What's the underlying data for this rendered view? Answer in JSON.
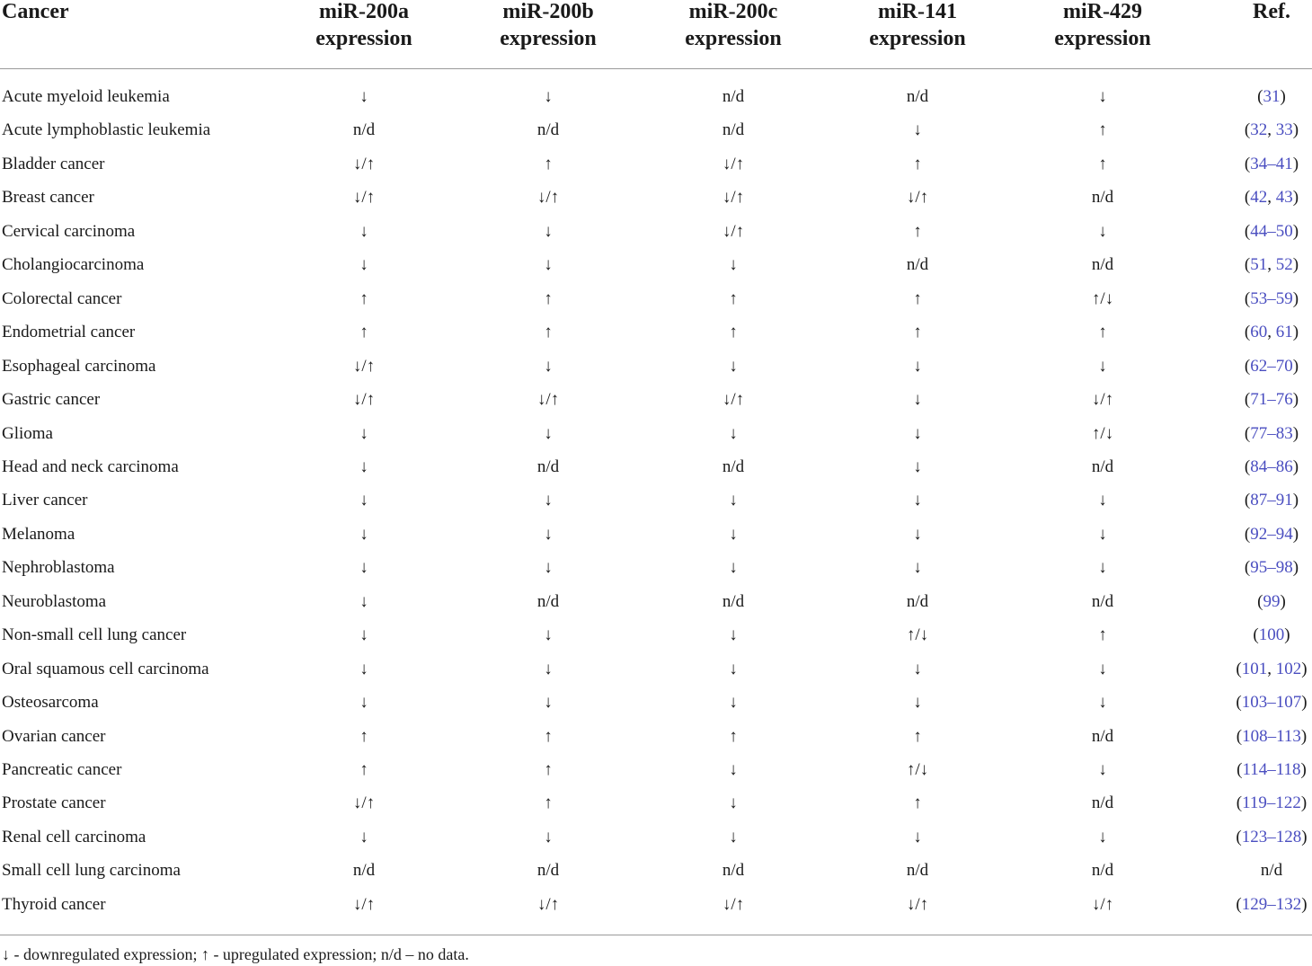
{
  "table": {
    "headers": [
      {
        "line1": "Cancer",
        "line2": ""
      },
      {
        "line1": "miR-200a",
        "line2": "expression"
      },
      {
        "line1": "miR-200b",
        "line2": "expression"
      },
      {
        "line1": "miR-200c",
        "line2": "expression"
      },
      {
        "line1": "miR-141",
        "line2": "expression"
      },
      {
        "line1": "miR-429",
        "line2": "expression"
      },
      {
        "line1": "Ref.",
        "line2": ""
      }
    ],
    "rows": [
      {
        "cancer": "Acute myeloid leukemia",
        "a": "↓",
        "b": "↓",
        "c": "n/d",
        "m141": "n/d",
        "m429": "↓",
        "ref": [
          "31"
        ]
      },
      {
        "cancer": "Acute lymphoblastic leukemia",
        "a": "n/d",
        "b": "n/d",
        "c": "n/d",
        "m141": "↓",
        "m429": "↑",
        "ref": [
          "32",
          ", ",
          "33"
        ]
      },
      {
        "cancer": "Bladder cancer",
        "a": "↓/↑",
        "b": "↑",
        "c": "↓/↑",
        "m141": "↑",
        "m429": "↑",
        "ref": [
          "34–41"
        ]
      },
      {
        "cancer": "Breast cancer",
        "a": "↓/↑",
        "b": "↓/↑",
        "c": "↓/↑",
        "m141": "↓/↑",
        "m429": "n/d",
        "ref": [
          "42",
          ", ",
          "43"
        ]
      },
      {
        "cancer": "Cervical carcinoma",
        "a": "↓",
        "b": "↓",
        "c": "↓/↑",
        "m141": "↑",
        "m429": "↓",
        "ref": [
          "44–50"
        ]
      },
      {
        "cancer": "Cholangiocarcinoma",
        "a": "↓",
        "b": "↓",
        "c": "↓",
        "m141": "n/d",
        "m429": "n/d",
        "ref": [
          "51",
          ", ",
          "52"
        ]
      },
      {
        "cancer": "Colorectal cancer",
        "a": "↑",
        "b": "↑",
        "c": "↑",
        "m141": "↑",
        "m429": "↑/↓",
        "ref": [
          "53–59"
        ]
      },
      {
        "cancer": "Endometrial cancer",
        "a": "↑",
        "b": "↑",
        "c": "↑",
        "m141": "↑",
        "m429": "↑",
        "ref": [
          "60",
          ", ",
          "61"
        ]
      },
      {
        "cancer": "Esophageal carcinoma",
        "a": "↓/↑",
        "b": "↓",
        "c": "↓",
        "m141": "↓",
        "m429": "↓",
        "ref": [
          "62–70"
        ]
      },
      {
        "cancer": "Gastric cancer",
        "a": "↓/↑",
        "b": "↓/↑",
        "c": "↓/↑",
        "m141": "↓",
        "m429": "↓/↑",
        "ref": [
          "71–76"
        ]
      },
      {
        "cancer": "Glioma",
        "a": "↓",
        "b": "↓",
        "c": "↓",
        "m141": "↓",
        "m429": "↑/↓",
        "ref": [
          "77–83"
        ]
      },
      {
        "cancer": "Head and neck carcinoma",
        "a": "↓",
        "b": "n/d",
        "c": "n/d",
        "m141": "↓",
        "m429": "n/d",
        "ref": [
          "84–86"
        ]
      },
      {
        "cancer": "Liver cancer",
        "a": "↓",
        "b": "↓",
        "c": "↓",
        "m141": "↓",
        "m429": "↓",
        "ref": [
          "87–91"
        ]
      },
      {
        "cancer": "Melanoma",
        "a": "↓",
        "b": "↓",
        "c": "↓",
        "m141": "↓",
        "m429": "↓",
        "ref": [
          "92–94"
        ]
      },
      {
        "cancer": "Nephroblastoma",
        "a": "↓",
        "b": "↓",
        "c": "↓",
        "m141": "↓",
        "m429": "↓",
        "ref": [
          "95–98"
        ]
      },
      {
        "cancer": "Neuroblastoma",
        "a": "↓",
        "b": "n/d",
        "c": "n/d",
        "m141": "n/d",
        "m429": "n/d",
        "ref": [
          "99"
        ]
      },
      {
        "cancer": "Non-small cell lung cancer",
        "a": "↓",
        "b": "↓",
        "c": "↓",
        "m141": "↑/↓",
        "m429": "↑",
        "ref": [
          "100"
        ]
      },
      {
        "cancer": "Oral squamous cell carcinoma",
        "a": "↓",
        "b": "↓",
        "c": "↓",
        "m141": "↓",
        "m429": "↓",
        "ref": [
          "101",
          ", ",
          "102"
        ]
      },
      {
        "cancer": "Osteosarcoma",
        "a": "↓",
        "b": "↓",
        "c": "↓",
        "m141": "↓",
        "m429": "↓",
        "ref": [
          "103–107"
        ]
      },
      {
        "cancer": "Ovarian cancer",
        "a": "↑",
        "b": "↑",
        "c": "↑",
        "m141": "↑",
        "m429": "n/d",
        "ref": [
          "108–113"
        ]
      },
      {
        "cancer": "Pancreatic cancer",
        "a": "↑",
        "b": "↑",
        "c": "↓",
        "m141": "↑/↓",
        "m429": "↓",
        "ref": [
          "114–118"
        ]
      },
      {
        "cancer": "Prostate cancer",
        "a": "↓/↑",
        "b": "↑",
        "c": "↓",
        "m141": "↑",
        "m429": "n/d",
        "ref": [
          "119–122"
        ]
      },
      {
        "cancer": "Renal cell carcinoma",
        "a": "↓",
        "b": "↓",
        "c": "↓",
        "m141": "↓",
        "m429": "↓",
        "ref": [
          "123–128"
        ]
      },
      {
        "cancer": "Small cell lung carcinoma",
        "a": "n/d",
        "b": "n/d",
        "c": "n/d",
        "m141": "n/d",
        "m429": "n/d",
        "ref_plain": "n/d"
      },
      {
        "cancer": "Thyroid cancer",
        "a": "↓/↑",
        "b": "↓/↑",
        "c": "↓/↑",
        "m141": "↓/↑",
        "m429": "↓/↑",
        "ref": [
          "129–132"
        ]
      }
    ],
    "footnote": "↓ - downregulated expression; ↑ - upregulated expression; n/d – no data."
  },
  "colors": {
    "link": "#4a4ec0",
    "rule": "#9a9a9a",
    "text": "#1a1a1a"
  }
}
